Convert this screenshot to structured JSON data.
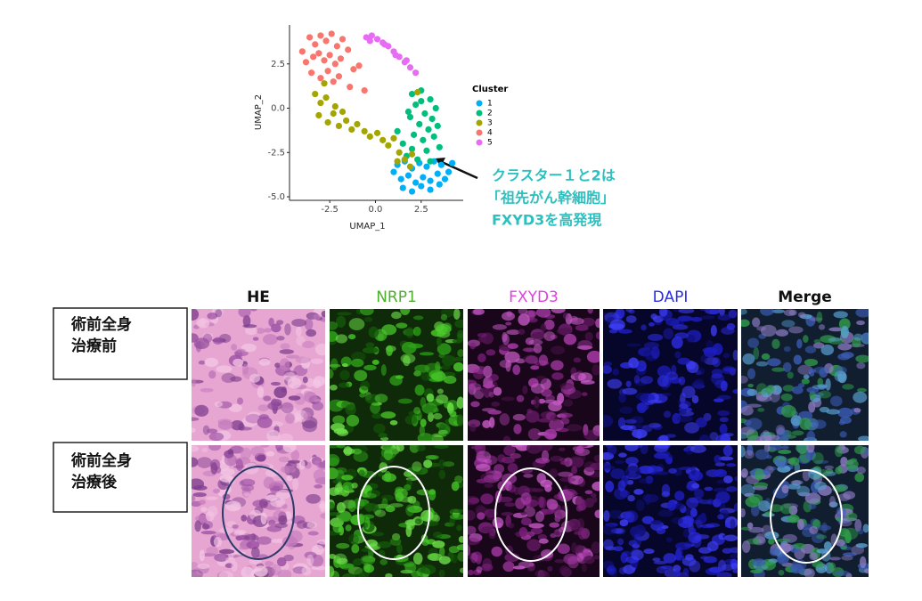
{
  "chart_data": {
    "type": "scatter",
    "xlabel": "UMAP_1",
    "ylabel": "UMAP_2",
    "legend_title": "Cluster",
    "xlim": [
      -4.7,
      4.8
    ],
    "ylim": [
      -5.2,
      4.7
    ],
    "xticks": [
      -2.5,
      {
        "value": 0,
        "label": "0.0"
      },
      2.5
    ],
    "yticks": [
      2.5,
      {
        "value": 0,
        "label": "0.0"
      },
      -2.5,
      {
        "value": -5,
        "label": "-5.0"
      }
    ],
    "series": [
      {
        "name": "1",
        "color": "#00b0f6",
        "x": [
          1.2,
          1.6,
          2.0,
          2.4,
          2.8,
          3.2,
          3.6,
          4.0,
          1.4,
          1.8,
          2.2,
          2.6,
          3.0,
          3.4,
          3.8,
          1.5,
          2.0,
          2.5,
          3.0,
          3.5,
          1.0,
          4.2
        ],
        "values": [
          -3.2,
          -3.0,
          -3.4,
          -3.1,
          -3.3,
          -3.0,
          -3.2,
          -3.6,
          -4.0,
          -3.8,
          -4.2,
          -3.9,
          -4.1,
          -3.7,
          -4.0,
          -4.5,
          -4.7,
          -4.4,
          -4.6,
          -4.3,
          -3.6,
          -3.1
        ]
      },
      {
        "name": "2",
        "color": "#00bf7d",
        "x": [
          2.0,
          2.5,
          3.0,
          3.3,
          2.2,
          2.7,
          3.1,
          1.8,
          2.4,
          2.9,
          3.4,
          2.1,
          2.6,
          3.2,
          1.5,
          2.0,
          2.8,
          3.5,
          1.7,
          2.3,
          3.0,
          2.5,
          1.2,
          1.9
        ],
        "values": [
          0.8,
          1.0,
          0.5,
          0.0,
          0.2,
          -0.3,
          -0.6,
          -0.2,
          -0.9,
          -1.2,
          -1.0,
          -1.5,
          -1.8,
          -1.6,
          -2.0,
          -2.3,
          -2.4,
          -2.2,
          -2.7,
          -2.9,
          -3.0,
          0.4,
          -1.3,
          -0.5
        ]
      },
      {
        "name": "3",
        "color": "#a3a500",
        "x": [
          -3.3,
          -3.0,
          -2.7,
          -3.1,
          -2.6,
          -2.3,
          -2.0,
          -1.6,
          -1.3,
          -1.0,
          -0.6,
          -0.3,
          0.1,
          0.4,
          0.7,
          1.0,
          1.3,
          1.6,
          1.9,
          -2.8,
          -2.2,
          -1.8,
          2.3,
          2.0,
          1.2
        ],
        "values": [
          0.8,
          0.3,
          0.6,
          -0.4,
          -0.8,
          -0.3,
          -1.0,
          -0.7,
          -1.2,
          -0.9,
          -1.3,
          -1.6,
          -1.4,
          -1.8,
          -2.1,
          -1.7,
          -2.5,
          -2.9,
          -3.3,
          1.4,
          0.1,
          -0.2,
          0.9,
          -2.6,
          -3.0
        ]
      },
      {
        "name": "4",
        "color": "#f8766d",
        "x": [
          -4.0,
          -3.6,
          -3.3,
          -3.0,
          -2.7,
          -2.4,
          -2.1,
          -1.8,
          -3.8,
          -3.4,
          -3.1,
          -2.8,
          -2.5,
          -2.2,
          -1.9,
          -1.5,
          -1.2,
          -3.5,
          -3.0,
          -2.6,
          -2.3,
          -2.0,
          -1.4,
          -0.9,
          -0.6
        ],
        "values": [
          3.2,
          4.0,
          3.6,
          4.1,
          3.8,
          4.2,
          3.5,
          3.9,
          2.6,
          2.9,
          3.1,
          2.7,
          3.0,
          2.5,
          2.8,
          3.3,
          2.2,
          2.0,
          1.7,
          2.1,
          1.5,
          1.8,
          1.2,
          2.4,
          1.0
        ]
      },
      {
        "name": "5",
        "color": "#e76bf3",
        "x": [
          -0.5,
          -0.2,
          0.1,
          0.4,
          0.7,
          1.0,
          1.3,
          1.6,
          1.9,
          2.2,
          -0.3,
          0.5,
          1.1,
          1.7
        ],
        "values": [
          4.0,
          4.1,
          3.9,
          3.7,
          3.5,
          3.2,
          2.9,
          2.6,
          2.3,
          2.0,
          3.8,
          3.6,
          3.0,
          2.7
        ]
      }
    ],
    "annotation": [
      "クラスター１と2は",
      "「祖先がん幹細胞」",
      "FXYD3を高発現"
    ]
  },
  "panel": {
    "columns": [
      {
        "label": "HE",
        "color": "#111111"
      },
      {
        "label": "NRP1",
        "color": "#4caf2a"
      },
      {
        "label": "FXYD3",
        "color": "#e040e0"
      },
      {
        "label": "DAPI",
        "color": "#2a2af0"
      },
      {
        "label": "Merge",
        "color": "#111111"
      }
    ],
    "rows": [
      [
        "術前全身",
        "治療前"
      ],
      [
        "術前全身",
        "治療後"
      ]
    ]
  }
}
